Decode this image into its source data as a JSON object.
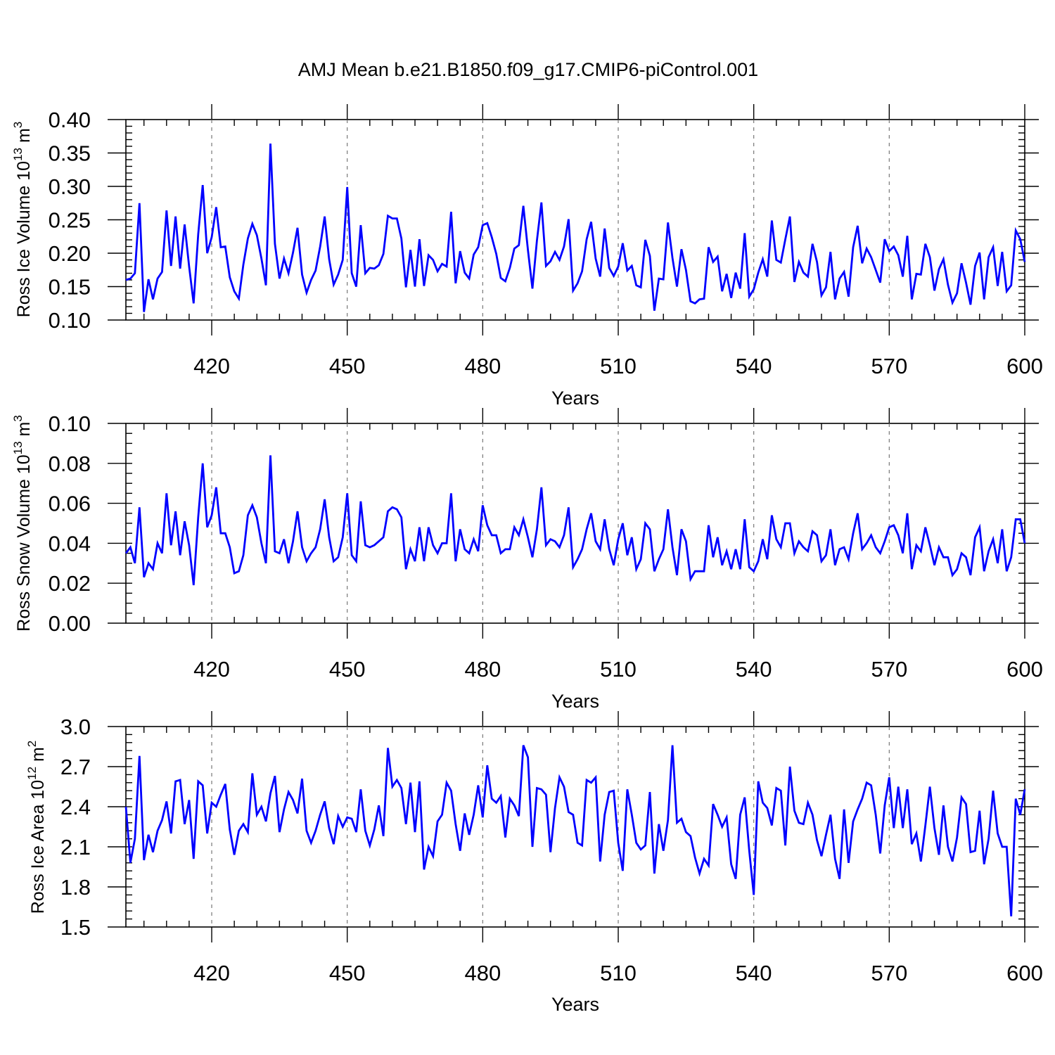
{
  "figure": {
    "title": "AMJ Mean b.e21.B1850.f09_g17.CMIP6-piControl.001"
  },
  "chart_data": [
    {
      "type": "line",
      "xlabel": "Years",
      "ylabel": "Ross Ice Volume 10",
      "ylabel_exp": "13",
      "ylabel_unit": " m",
      "ylabel_unit_exp": "3",
      "xlim": [
        401,
        600
      ],
      "ylim": [
        0.1,
        0.4
      ],
      "x_ticks": [
        420,
        450,
        480,
        510,
        540,
        570,
        600
      ],
      "x_tick_labels": [
        "420",
        "450",
        "480",
        "510",
        "540",
        "570",
        "600"
      ],
      "y_ticks": [
        0.1,
        0.15,
        0.2,
        0.25,
        0.3,
        0.35,
        0.4
      ],
      "y_tick_labels": [
        "0.10",
        "0.15",
        "0.20",
        "0.25",
        "0.30",
        "0.35",
        "0.40"
      ],
      "grid": "vertical dashed at major x ticks",
      "color": "#0000ff",
      "series": [
        {
          "x_start": 401,
          "x_step": 1,
          "values": [
            0.16,
            0.162,
            0.17,
            0.275,
            0.112,
            0.161,
            0.131,
            0.162,
            0.172,
            0.264,
            0.181,
            0.255,
            0.177,
            0.243,
            0.18,
            0.125,
            0.228,
            0.302,
            0.2,
            0.224,
            0.269,
            0.209,
            0.21,
            0.164,
            0.143,
            0.132,
            0.183,
            0.222,
            0.244,
            0.227,
            0.192,
            0.152,
            0.364,
            0.214,
            0.162,
            0.192,
            0.17,
            0.201,
            0.238,
            0.168,
            0.141,
            0.16,
            0.174,
            0.21,
            0.255,
            0.191,
            0.153,
            0.168,
            0.19,
            0.299,
            0.17,
            0.15,
            0.242,
            0.17,
            0.178,
            0.177,
            0.182,
            0.199,
            0.256,
            0.252,
            0.252,
            0.222,
            0.149,
            0.205,
            0.15,
            0.221,
            0.151,
            0.197,
            0.19,
            0.173,
            0.184,
            0.18,
            0.262,
            0.155,
            0.203,
            0.171,
            0.162,
            0.198,
            0.209,
            0.242,
            0.245,
            0.224,
            0.199,
            0.163,
            0.158,
            0.178,
            0.207,
            0.212,
            0.271,
            0.205,
            0.147,
            0.219,
            0.276,
            0.181,
            0.188,
            0.202,
            0.19,
            0.21,
            0.251,
            0.144,
            0.155,
            0.173,
            0.221,
            0.247,
            0.192,
            0.165,
            0.237,
            0.178,
            0.166,
            0.18,
            0.215,
            0.174,
            0.181,
            0.152,
            0.149,
            0.22,
            0.196,
            0.114,
            0.162,
            0.161,
            0.246,
            0.193,
            0.15,
            0.206,
            0.175,
            0.128,
            0.125,
            0.131,
            0.132,
            0.209,
            0.187,
            0.195,
            0.143,
            0.169,
            0.133,
            0.171,
            0.147,
            0.23,
            0.135,
            0.146,
            0.171,
            0.191,
            0.165,
            0.249,
            0.19,
            0.186,
            0.221,
            0.255,
            0.157,
            0.187,
            0.171,
            0.165,
            0.214,
            0.187,
            0.137,
            0.149,
            0.202,
            0.131,
            0.162,
            0.172,
            0.135,
            0.209,
            0.241,
            0.185,
            0.207,
            0.194,
            0.175,
            0.156,
            0.221,
            0.203,
            0.21,
            0.197,
            0.165,
            0.226,
            0.131,
            0.169,
            0.168,
            0.214,
            0.194,
            0.144,
            0.176,
            0.191,
            0.153,
            0.126,
            0.14,
            0.185,
            0.156,
            0.123,
            0.181,
            0.201,
            0.131,
            0.194,
            0.209,
            0.151,
            0.202,
            0.143,
            0.152,
            0.234,
            0.221,
            0.187
          ]
        }
      ]
    },
    {
      "type": "line",
      "xlabel": "Years",
      "ylabel": "Ross Snow Volume 10",
      "ylabel_exp": "13",
      "ylabel_unit": " m",
      "ylabel_unit_exp": "3",
      "xlim": [
        401,
        600
      ],
      "ylim": [
        0.0,
        0.1
      ],
      "x_ticks": [
        420,
        450,
        480,
        510,
        540,
        570,
        600
      ],
      "x_tick_labels": [
        "420",
        "450",
        "480",
        "510",
        "540",
        "570",
        "600"
      ],
      "y_ticks": [
        0.0,
        0.02,
        0.04,
        0.06,
        0.08,
        0.1
      ],
      "y_tick_labels": [
        "0.00",
        "0.02",
        "0.04",
        "0.06",
        "0.08",
        "0.10"
      ],
      "grid": "vertical dashed at major x ticks",
      "color": "#0000ff",
      "series": [
        {
          "x_start": 401,
          "x_step": 1,
          "values": [
            0.035,
            0.038,
            0.03,
            0.058,
            0.023,
            0.03,
            0.027,
            0.04,
            0.035,
            0.065,
            0.039,
            0.056,
            0.034,
            0.051,
            0.039,
            0.019,
            0.053,
            0.08,
            0.048,
            0.054,
            0.068,
            0.045,
            0.045,
            0.038,
            0.025,
            0.026,
            0.034,
            0.054,
            0.059,
            0.053,
            0.04,
            0.03,
            0.084,
            0.036,
            0.035,
            0.042,
            0.03,
            0.041,
            0.056,
            0.038,
            0.031,
            0.035,
            0.038,
            0.047,
            0.062,
            0.043,
            0.031,
            0.033,
            0.043,
            0.065,
            0.034,
            0.031,
            0.061,
            0.039,
            0.038,
            0.039,
            0.041,
            0.043,
            0.056,
            0.058,
            0.057,
            0.053,
            0.027,
            0.037,
            0.031,
            0.048,
            0.031,
            0.048,
            0.039,
            0.035,
            0.04,
            0.04,
            0.065,
            0.031,
            0.047,
            0.037,
            0.035,
            0.042,
            0.036,
            0.059,
            0.049,
            0.044,
            0.044,
            0.035,
            0.037,
            0.037,
            0.048,
            0.044,
            0.052,
            0.043,
            0.033,
            0.047,
            0.068,
            0.039,
            0.042,
            0.041,
            0.038,
            0.044,
            0.058,
            0.028,
            0.032,
            0.037,
            0.047,
            0.055,
            0.041,
            0.037,
            0.052,
            0.037,
            0.029,
            0.042,
            0.05,
            0.034,
            0.043,
            0.027,
            0.032,
            0.05,
            0.047,
            0.026,
            0.032,
            0.037,
            0.057,
            0.038,
            0.024,
            0.047,
            0.041,
            0.022,
            0.026,
            0.026,
            0.026,
            0.049,
            0.033,
            0.043,
            0.029,
            0.036,
            0.027,
            0.037,
            0.027,
            0.052,
            0.028,
            0.026,
            0.031,
            0.042,
            0.032,
            0.054,
            0.042,
            0.038,
            0.05,
            0.05,
            0.035,
            0.041,
            0.038,
            0.036,
            0.046,
            0.044,
            0.031,
            0.034,
            0.047,
            0.029,
            0.037,
            0.038,
            0.032,
            0.045,
            0.055,
            0.037,
            0.04,
            0.044,
            0.038,
            0.035,
            0.041,
            0.048,
            0.049,
            0.044,
            0.035,
            0.055,
            0.027,
            0.039,
            0.036,
            0.048,
            0.039,
            0.029,
            0.038,
            0.033,
            0.033,
            0.024,
            0.027,
            0.035,
            0.033,
            0.024,
            0.043,
            0.048,
            0.026,
            0.036,
            0.042,
            0.03,
            0.047,
            0.026,
            0.033,
            0.052,
            0.052,
            0.04
          ]
        }
      ]
    },
    {
      "type": "line",
      "xlabel": "Years",
      "ylabel": "Ross Ice Area 10",
      "ylabel_exp": "12",
      "ylabel_unit": " m",
      "ylabel_unit_exp": "2",
      "xlim": [
        401,
        600
      ],
      "ylim": [
        1.5,
        3.0
      ],
      "x_ticks": [
        420,
        450,
        480,
        510,
        540,
        570,
        600
      ],
      "x_tick_labels": [
        "420",
        "450",
        "480",
        "510",
        "540",
        "570",
        "600"
      ],
      "y_ticks": [
        1.5,
        1.8,
        2.1,
        2.4,
        2.7,
        3.0
      ],
      "y_tick_labels": [
        "1.5",
        "1.8",
        "2.1",
        "2.4",
        "2.7",
        "3.0"
      ],
      "grid": "vertical dashed at major x ticks",
      "color": "#0000ff",
      "series": [
        {
          "x_start": 401,
          "x_step": 1,
          "values": [
            2.4,
            1.98,
            2.16,
            2.78,
            2.0,
            2.19,
            2.06,
            2.22,
            2.3,
            2.44,
            2.2,
            2.59,
            2.6,
            2.27,
            2.45,
            2.01,
            2.59,
            2.56,
            2.2,
            2.43,
            2.4,
            2.49,
            2.57,
            2.23,
            2.04,
            2.22,
            2.27,
            2.21,
            2.65,
            2.34,
            2.4,
            2.29,
            2.5,
            2.63,
            2.21,
            2.38,
            2.51,
            2.45,
            2.35,
            2.61,
            2.22,
            2.13,
            2.22,
            2.34,
            2.44,
            2.24,
            2.12,
            2.33,
            2.25,
            2.32,
            2.31,
            2.21,
            2.53,
            2.22,
            2.11,
            2.23,
            2.41,
            2.18,
            2.84,
            2.55,
            2.6,
            2.54,
            2.27,
            2.58,
            2.21,
            2.59,
            1.93,
            2.1,
            2.03,
            2.29,
            2.34,
            2.58,
            2.52,
            2.27,
            2.07,
            2.35,
            2.19,
            2.34,
            2.56,
            2.32,
            2.71,
            2.46,
            2.43,
            2.48,
            2.17,
            2.46,
            2.41,
            2.33,
            2.86,
            2.77,
            2.1,
            2.54,
            2.53,
            2.49,
            2.06,
            2.39,
            2.62,
            2.55,
            2.36,
            2.34,
            2.13,
            2.11,
            2.6,
            2.58,
            2.62,
            1.99,
            2.34,
            2.51,
            2.52,
            2.13,
            1.92,
            2.53,
            2.34,
            2.13,
            2.08,
            2.11,
            2.51,
            1.9,
            2.27,
            2.07,
            2.3,
            2.86,
            2.28,
            2.31,
            2.21,
            2.18,
            2.02,
            1.9,
            2.01,
            1.96,
            2.42,
            2.34,
            2.25,
            2.32,
            1.97,
            1.86,
            2.34,
            2.47,
            2.07,
            1.74,
            2.59,
            2.43,
            2.39,
            2.26,
            2.54,
            2.52,
            2.11,
            2.7,
            2.37,
            2.28,
            2.27,
            2.43,
            2.34,
            2.15,
            2.03,
            2.19,
            2.34,
            2.01,
            1.86,
            2.38,
            1.98,
            2.29,
            2.38,
            2.46,
            2.58,
            2.56,
            2.34,
            2.05,
            2.41,
            2.62,
            2.24,
            2.55,
            2.24,
            2.53,
            2.12,
            2.2,
            1.99,
            2.26,
            2.55,
            2.24,
            2.04,
            2.41,
            2.1,
            1.99,
            2.17,
            2.47,
            2.42,
            2.06,
            2.07,
            2.37,
            1.97,
            2.16,
            2.52,
            2.2,
            2.1,
            2.1,
            1.58,
            2.46,
            2.34,
            2.53
          ]
        }
      ]
    }
  ]
}
